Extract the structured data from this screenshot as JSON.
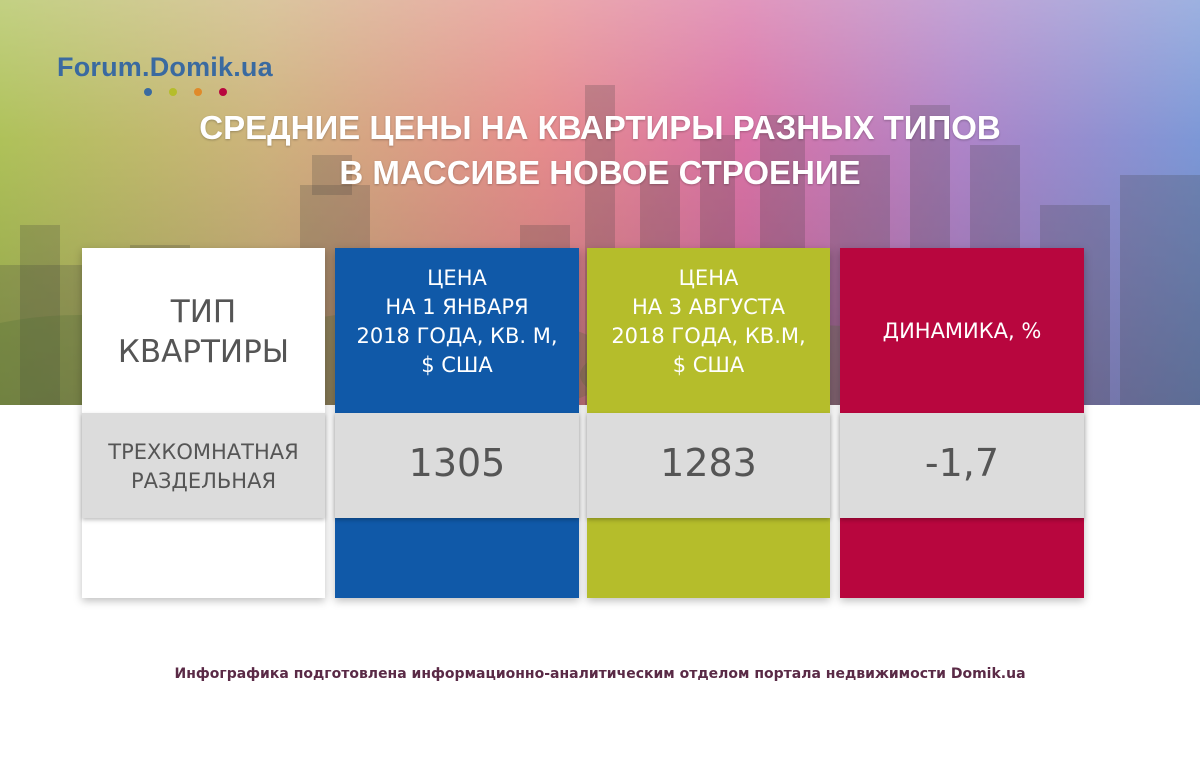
{
  "brand": {
    "logo_text": "Forum.Domik.ua",
    "dot_colors": [
      "#3a6aa0",
      "#b5bd2b",
      "#e08a2a",
      "#b8063e"
    ]
  },
  "chart_data": {
    "type": "table",
    "title_line1": "СРЕДНИЕ ЦЕНЫ НА КВАРТИРЫ РАЗНЫХ ТИПОВ",
    "title_line2": "В МАССИВЕ НОВОЕ СТРОЕНИЕ",
    "columns": [
      {
        "lines": [
          "ТИП",
          "КВАРТИРЫ"
        ],
        "color": "#ffffff"
      },
      {
        "lines": [
          "ЦЕНА",
          "НА 1 ЯНВАРЯ",
          "2018 ГОДА, КВ. М,",
          "$ США"
        ],
        "color": "#1059a8"
      },
      {
        "lines": [
          "ЦЕНА",
          "НА 3 АВГУСТА",
          "2018 ГОДА, КВ.М,",
          "$ США"
        ],
        "color": "#b5bd2b"
      },
      {
        "lines": [
          "ДИНАМИКА, %"
        ],
        "color": "#b8063e"
      }
    ],
    "rows": [
      {
        "type_lines": [
          "ТРЕХКОМНАТНАЯ",
          "РАЗДЕЛЬНАЯ"
        ],
        "price_jan": "1305",
        "price_aug": "1283",
        "dynamics": "-1,7"
      }
    ]
  },
  "footer": {
    "text": "Инфографика подготовлена информационно-аналитическим отделом портала недвижимости Domik.ua"
  }
}
